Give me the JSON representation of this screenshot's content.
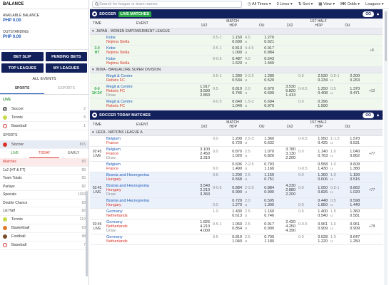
{
  "sidebar": {
    "title": "BALANCE",
    "available_label": "AVAILABLE BALANCE",
    "available_value": "PHP 0.00",
    "outstanding_label": "OUTSTANDING",
    "outstanding_value": "PHP 0.00",
    "buttons": [
      "BET SLIP",
      "PENDING BETS",
      "TOP LEAGUES",
      "MY LEAGUES"
    ],
    "all_events": "ALL EVENTS",
    "tabs": [
      "SPORTS",
      "ESPORTS"
    ],
    "live_label": "LIVE",
    "live_items": [
      {
        "name": "Soccer",
        "count": "2"
      },
      {
        "name": "Tennis",
        "count": "8"
      },
      {
        "name": "Baseball",
        "count": "1"
      }
    ],
    "sports_label": "SPORTS",
    "sport_selected": {
      "name": "Soccer",
      "count": "815"
    },
    "subtabs": [
      "LIVE",
      "TODAY",
      "EARLY"
    ],
    "sub_items": [
      {
        "name": "Matches",
        "count": "83"
      },
      {
        "name": "1x2 (HT & FT)",
        "count": "83"
      },
      {
        "name": "Team Totals",
        "count": "83"
      },
      {
        "name": "Parlays",
        "count": "82"
      },
      {
        "name": "Specials",
        "count": "1263"
      },
      {
        "name": "Double Chance",
        "count": "83"
      },
      {
        "name": "1st Half",
        "count": "82"
      }
    ],
    "other_sports": [
      {
        "name": "Tennis",
        "count": "212"
      },
      {
        "name": "Basketball",
        "count": "63"
      },
      {
        "name": "Football",
        "count": "98"
      },
      {
        "name": "Baseball",
        "count": "7"
      }
    ]
  },
  "topbar": {
    "search_placeholder": "Search for league or team names",
    "filter": "All Times",
    "lines": "3 Lines",
    "sort": "Sort",
    "view": "View",
    "odds_code": "HK",
    "odds": "Odds",
    "leagues": "Leagues"
  },
  "live_section": {
    "title": "SOCCER",
    "badge": "LIVE MATCHES",
    "pill": "OO",
    "headers": {
      "time": "TIME",
      "event": "EVENT",
      "match": "MATCH",
      "half": "1ST HALF",
      "c1x2": "1X2",
      "hdp": "HDP",
      "ou": "OU"
    },
    "leagues": [
      {
        "name": "JAPAN - WOMEN EMPOWERMENT LEAGUE",
        "score": "3-0",
        "state": "HT",
        "more": "+8",
        "rows": [
          {
            "home": "Kobe",
            "away": "Nojima Stella",
            "hdp": [
              [
                "0.5-1",
                "1.150"
              ],
              [
                "",
                "0.699"
              ]
            ],
            "ou": [
              [
                "4.5",
                "1.270"
              ],
              [
                "u",
                "0.621"
              ]
            ]
          },
          {
            "home": "Kobe",
            "away": "Nojima Stella",
            "hdp": [
              [
                "0.5-1",
                "0.813"
              ],
              [
                "",
                "1.000"
              ]
            ],
            "ou": [
              [
                "4-4.5",
                "0.917"
              ],
              [
                "u",
                "0.884"
              ]
            ]
          },
          {
            "home": "Kobe",
            "away": "Nojima Stella",
            "hdp": [
              [
                "0-0.5",
                "0.487"
              ],
              [
                "",
                "1.620"
              ]
            ],
            "ou": [
              [
                "4.0",
                "0.543"
              ],
              [
                "u",
                "1.440"
              ]
            ]
          }
        ]
      },
      {
        "name": "INDIA - BANGALORE SUPER DIVISION",
        "score": "0-0",
        "state": "1H 34'",
        "more": "+12",
        "rows": [
          {
            "home": "Megit & Centre",
            "away": "Rebels FC",
            "hdp": [
              [
                "0.5-1",
                "1.280"
              ],
              [
                "",
                "0.534"
              ]
            ],
            "ou": [
              [
                "2-2.5",
                "1.280"
              ],
              [
                "u",
                "0.520"
              ]
            ],
            "h_hdp": [
              [
                "0.5",
                "2.530"
              ],
              [
                "",
                "0.234"
              ]
            ],
            "h_ou": [
              [
                "0.5-1",
                "2.200"
              ],
              [
                "u",
                "0.263"
              ]
            ]
          },
          {
            "home": "Megit & Centre",
            "away": "Rebels FC",
            "draw": "Draw",
            "x12": [
              "1.917",
              "3.590",
              "2.860"
            ],
            "hdp": [
              [
                "0.5",
                "0.810"
              ],
              [
                "",
                "0.746"
              ]
            ],
            "ou": [
              [
                "2.0",
                "0.970"
              ],
              [
                "u",
                "0.699"
              ]
            ],
            "h_x12": [
              "3.530",
              "5.820",
              "1.413"
            ],
            "h_hdp": [
              [
                "0-0.5",
                "1.250"
              ],
              [
                "",
                "0.408"
              ]
            ],
            "h_ou": [
              [
                "0.5",
                "1.370"
              ],
              [
                "u",
                "0.471"
              ]
            ]
          },
          {
            "home": "Megit & Centre",
            "away": "Rebels FC",
            "hdp": [
              [
                "0-0.5",
                "0.649"
              ],
              [
                "",
                "1.040"
              ]
            ],
            "ou": [
              [
                "1.5-2",
                "0.694"
              ],
              [
                "u",
                "0.970"
              ]
            ],
            "h_hdp": [
              [
                "0.0",
                "0.396"
              ],
              [
                "",
                "1.590"
              ]
            ]
          }
        ]
      }
    ]
  },
  "today_section": {
    "title": "SOCCER TODAY MATCHES",
    "pill": "OO",
    "league": "UEFA - NATIONS LEAGUE A",
    "matches": [
      {
        "time": "02:45",
        "state": "LIVE",
        "more": "+77",
        "rows": [
          {
            "home": "Belgium",
            "away": "France",
            "hdp": [
              [
                "0.0",
                "1.200"
              ],
              [
                "",
                "0.729"
              ]
            ],
            "ou": [
              [
                "2.5-3",
                "1.360"
              ],
              [
                "u",
                "0.632"
              ]
            ],
            "h_hdp": [
              [
                "0-0.5",
                "1.950"
              ],
              [
                "",
                "0.425"
              ]
            ],
            "h_ou": [
              [
                "1-1.5",
                "1.570"
              ],
              [
                "u",
                "0.531"
              ]
            ]
          },
          {
            "home": "Belgium",
            "away": "France",
            "draw": "Draw",
            "x12": [
              "3.100",
              "2.450",
              "3.310"
            ],
            "hdp": [
              [
                "0.0",
                "0.870"
              ],
              [
                "",
                "1.020"
              ]
            ],
            "ou": [
              [
                "2.5",
                "1.070"
              ],
              [
                "u",
                "0.826"
              ]
            ],
            "h_x12": [
              "3.780",
              "3.130",
              "2.200"
            ],
            "h_hdp": [
              [
                "0.0",
                "1.140"
              ],
              [
                "",
                "0.763"
              ]
            ],
            "h_ou": [
              [
                "1.0",
                "1.040"
              ],
              [
                "u",
                "0.862"
              ]
            ]
          },
          {
            "home": "Belgium",
            "away": "France",
            "hdp": [
              [
                "",
                "0.606"
              ],
              [
                "0.0",
                "1.490"
              ]
            ],
            "ou": [
              [
                "2-2.5",
                "0.793"
              ],
              [
                "u",
                "1.160"
              ]
            ],
            "h_hdp": [
              [
                "",
                "0.558"
              ],
              [
                "0-0.5",
                "1.430"
              ]
            ],
            "h_ou": [
              [
                "1.0",
                "0.609"
              ],
              [
                "u",
                "1.380"
              ]
            ]
          }
        ]
      },
      {
        "time": "02:45",
        "state": "LIVE",
        "more": "+77",
        "rows": [
          {
            "home": "Bosnia and Herzegovina",
            "away": "Hungary",
            "hdp": [
              [
                "0.5",
                "1.200"
              ],
              [
                "",
                "0.568"
              ]
            ],
            "ou": [
              [
                "2.5",
                "1.150"
              ],
              [
                "u",
                "0.751"
              ]
            ],
            "h_hdp": [
              [
                "0.0",
                "1.360"
              ],
              [
                "",
                "0.606"
              ]
            ],
            "h_ou": [
              [
                "1.0",
                "1.190"
              ],
              [
                "u",
                "0.515"
              ]
            ]
          },
          {
            "home": "Bosnia and Herzegovina",
            "away": "Hungary",
            "draw": "Draw",
            "x12": [
              "3.540",
              "2.210",
              "3.360"
            ],
            "hdp": [
              [
                "0-0.5",
                "0.884"
              ],
              [
                "",
                "0.990"
              ]
            ],
            "ou": [
              [
                "2-2.5",
                "0.884"
              ],
              [
                "u",
                "0.990"
              ]
            ],
            "h_x12": [
              "4.230",
              "2.880",
              "2.200"
            ],
            "h_hdp": [
              [
                "0.0",
                "1.050"
              ],
              [
                "",
                "0.826"
              ]
            ],
            "h_ou": [
              [
                "0.5-1",
                "0.862"
              ],
              [
                "u",
                "1.020"
              ]
            ]
          },
          {
            "home": "Bosnia and Herzegovina",
            "away": "Hungary",
            "hdp": [
              [
                "",
                "0.729"
              ],
              [
                "0.0",
                "1.270"
              ]
            ],
            "ou": [
              [
                "2.0",
                "0.595"
              ],
              [
                "u",
                "1.390"
              ]
            ],
            "h_hdp": [
              [
                "",
                "0.448"
              ],
              [
                "0.0",
                "1.850"
              ]
            ],
            "h_ou": [
              [
                "0.5",
                "0.598"
              ],
              [
                "u",
                "1.440"
              ]
            ]
          }
        ]
      },
      {
        "time": "02:45",
        "state": "LIVE",
        "more": "+78",
        "rows": [
          {
            "home": "Germany",
            "away": "Netherlands",
            "hdp": [
              [
                "1.0",
                "1.430"
              ],
              [
                "",
                "0.613"
              ]
            ],
            "ou": [
              [
                "2.5",
                "1.160"
              ],
              [
                "u",
                "0.746"
              ]
            ],
            "h_hdp": [
              [
                "0.5",
                "1.400"
              ],
              [
                "",
                "0.540"
              ]
            ],
            "h_ou": [
              [
                "1.5",
                "1.360"
              ],
              [
                "u",
                "0.581"
              ]
            ]
          },
          {
            "home": "Germany",
            "away": "Netherlands",
            "draw": "Draw",
            "x12": [
              "1.826",
              "4.210",
              "4.000"
            ],
            "hdp": [
              [
                "0.5-1",
                "1.060"
              ],
              [
                "",
                "0.854"
              ]
            ],
            "ou": [
              [
                "2.5",
                "0.917"
              ],
              [
                "u",
                "0.990"
              ]
            ],
            "h_x12": [
              "2.420",
              "4.250",
              "4.390"
            ],
            "h_hdp": [
              [
                "0-0.5",
                "0.961"
              ],
              [
                "",
                "0.909"
              ]
            ],
            "h_ou": [
              [
                "1.0",
                "0.961"
              ],
              [
                "u",
                "0.909"
              ]
            ]
          },
          {
            "home": "Germany",
            "away": "Netherlands",
            "hdp": [
              [
                "0.5",
                "0.819"
              ],
              [
                "",
                "1.040"
              ]
            ],
            "ou": [
              [
                "2.5",
                "0.709"
              ],
              [
                "u",
                "1.180"
              ]
            ],
            "h_hdp": [
              [
                "0.0",
                "0.628"
              ],
              [
                "",
                "1.220"
              ]
            ],
            "h_ou": [
              [
                "1.0",
                "0.647"
              ],
              [
                "u",
                "1.250"
              ]
            ]
          }
        ]
      }
    ]
  },
  "colors": {
    "navy": "#12205c",
    "live_green": "#27a844",
    "home_blue": "#1d58b8",
    "away_red": "#d9342b"
  }
}
